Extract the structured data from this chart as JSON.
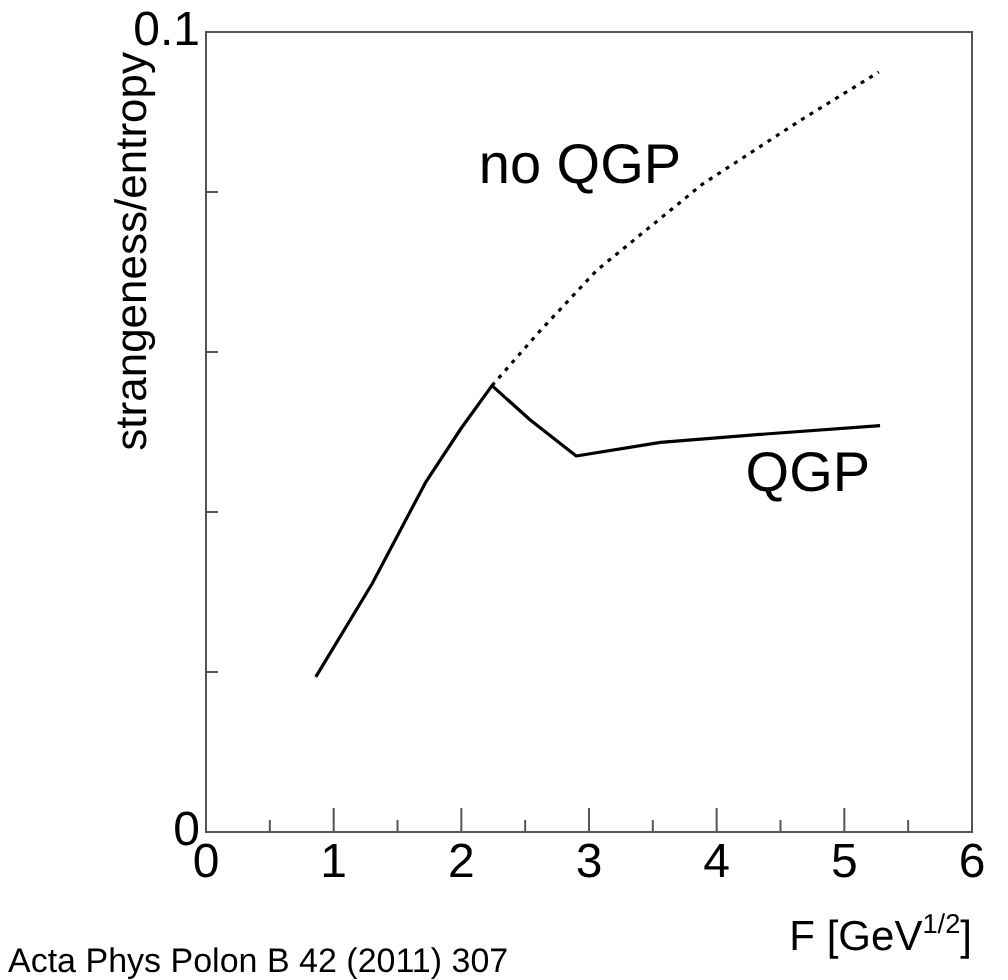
{
  "chart_data": {
    "type": "line",
    "xlabel": "F [GeV$^{1/2}$]",
    "ylabel": "strangeness/entropy",
    "xlim": [
      0,
      6
    ],
    "ylim": [
      0,
      0.1
    ],
    "xticks": [
      0,
      {
        "value": 0.5,
        "label": null
      },
      1,
      {
        "value": 1.5,
        "label": null
      },
      2,
      {
        "value": 2.5,
        "label": null
      },
      3,
      {
        "value": 3.5,
        "label": null
      },
      4,
      {
        "value": 4.5,
        "label": null
      },
      5,
      {
        "value": 5.5,
        "label": null
      },
      6
    ],
    "yticks": [
      0,
      {
        "value": 0.02,
        "label": null
      },
      {
        "value": 0.04,
        "label": null
      },
      {
        "value": 0.06,
        "label": null
      },
      {
        "value": 0.08,
        "label": null
      },
      {
        "value": 0.1,
        "label": "0.1"
      }
    ],
    "grid": false,
    "legend": false,
    "marker": "none",
    "series": [
      {
        "name": "QGP",
        "color": "#000000",
        "line_style": "solid",
        "x": [
          0.86,
          1.3,
          1.72,
          2.0,
          2.24,
          2.54,
          2.9,
          3.56,
          4.34,
          5.28
        ],
        "values": [
          0.0194,
          0.031,
          0.0437,
          0.0505,
          0.0558,
          0.0515,
          0.047,
          0.0487,
          0.0497,
          0.0508
        ]
      },
      {
        "name": "no QGP",
        "color": "#000000",
        "line_style": "dotted",
        "x": [
          2.24,
          2.62,
          3.06,
          3.89,
          4.66,
          5.27
        ],
        "values": [
          0.0558,
          0.0627,
          0.0702,
          0.081,
          0.089,
          0.095
        ]
      }
    ],
    "annotations": [
      "Acta Phys Polon B 42 (2011) 307"
    ]
  }
}
